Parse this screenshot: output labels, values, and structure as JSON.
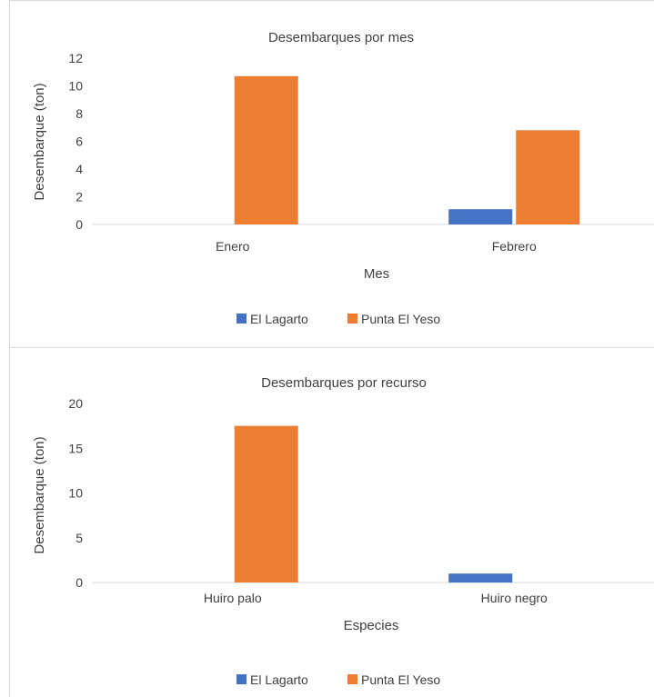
{
  "chart_data": [
    {
      "type": "bar",
      "title": "Desembarques por mes",
      "xlabel": "Mes",
      "ylabel": "Desembarque (ton)",
      "categories": [
        "Enero",
        "Febrero"
      ],
      "ylim": [
        0,
        12
      ],
      "yticks": [
        "0",
        "2",
        "4",
        "6",
        "8",
        "10",
        "12"
      ],
      "series": [
        {
          "name": "El Lagarto",
          "color": "#4472c4",
          "values": [
            0,
            1.1
          ]
        },
        {
          "name": "Punta El Yeso",
          "color": "#ed7d31",
          "values": [
            10.7,
            6.8
          ]
        }
      ],
      "legend": "bottom",
      "grid": false
    },
    {
      "type": "bar",
      "title": "Desembarques por recurso",
      "xlabel": "Especies",
      "ylabel": "Desembarque (ton)",
      "categories": [
        "Huiro palo",
        "Huiro negro"
      ],
      "ylim": [
        0,
        20
      ],
      "yticks": [
        "0",
        "5",
        "10",
        "15",
        "20"
      ],
      "series": [
        {
          "name": "El Lagarto",
          "color": "#4472c4",
          "values": [
            0,
            1.0
          ]
        },
        {
          "name": "Punta El Yeso",
          "color": "#ed7d31",
          "values": [
            17.5,
            0
          ]
        }
      ],
      "legend": "bottom",
      "grid": false
    }
  ]
}
